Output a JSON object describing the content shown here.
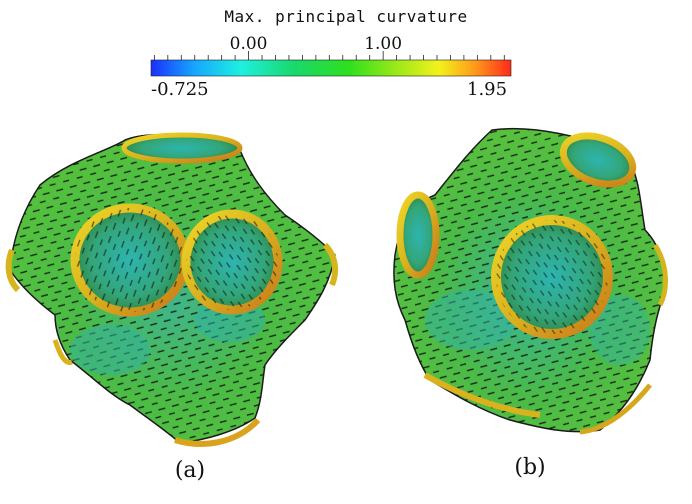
{
  "colorbar": {
    "title": "Max. principal curvature",
    "min_label": "-0.725",
    "max_label": "1.95",
    "min_value": -0.725,
    "max_value": 1.95,
    "tick_labels": [
      {
        "value": 0.0,
        "text": "0.00"
      },
      {
        "value": 1.0,
        "text": "1.00"
      }
    ],
    "colormap": [
      "#1a2fff",
      "#16a6ff",
      "#1ef0e0",
      "#19d86a",
      "#2ee01e",
      "#9be81a",
      "#f2f21a",
      "#ff9a1a",
      "#ff2a1a"
    ]
  },
  "panels": [
    {
      "id": "a",
      "label": "(a)"
    },
    {
      "id": "b",
      "label": "(b)"
    }
  ],
  "colors": {
    "surface_green": "#49b63d",
    "surface_teal": "#2fb3a0",
    "rim_yellow": "#e6c623",
    "rim_orange": "#d98a1c",
    "stroke_dark": "#111111"
  }
}
